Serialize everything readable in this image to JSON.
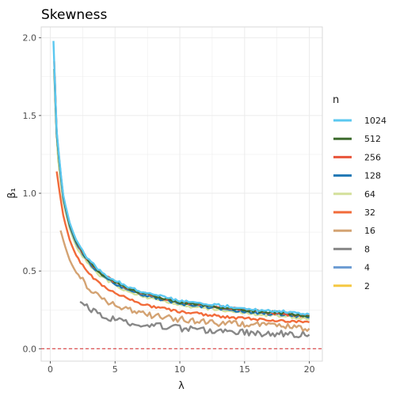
{
  "chart_data": {
    "type": "line",
    "title": "Skewness",
    "xlabel": "λ",
    "ylabel": "β₁",
    "xlim": [
      -0.7,
      21
    ],
    "ylim": [
      -0.08,
      2.07
    ],
    "x_ticks": [
      0,
      5,
      10,
      15,
      20
    ],
    "y_ticks": [
      0.0,
      0.5,
      1.0,
      1.5,
      2.0
    ],
    "y_tick_labels": [
      "0.0",
      "0.5",
      "1.0",
      "1.5",
      "2.0"
    ],
    "grid": true,
    "legend_position": "right",
    "legend_title": "n",
    "reference_line": {
      "y": 0,
      "color": "#d62728",
      "style": "dashed"
    },
    "series": [
      {
        "name": "1024",
        "color": "#5bc8f0",
        "lambda_min": 0.25,
        "points": [
          [
            0.25,
            1.98
          ],
          [
            0.5,
            1.4
          ],
          [
            1,
            0.99
          ],
          [
            1.5,
            0.81
          ],
          [
            2,
            0.7
          ],
          [
            3,
            0.57
          ],
          [
            4,
            0.49
          ],
          [
            5,
            0.44
          ],
          [
            6,
            0.4
          ],
          [
            7,
            0.37
          ],
          [
            8,
            0.35
          ],
          [
            10,
            0.31
          ],
          [
            12,
            0.29
          ],
          [
            14,
            0.27
          ],
          [
            16,
            0.25
          ],
          [
            18,
            0.24
          ],
          [
            20,
            0.22
          ]
        ]
      },
      {
        "name": "512",
        "color": "#3e6b2e",
        "lambda_min": 0.3,
        "points": [
          [
            0.3,
            1.8
          ],
          [
            0.5,
            1.38
          ],
          [
            1,
            0.98
          ],
          [
            1.5,
            0.8
          ],
          [
            2,
            0.69
          ],
          [
            3,
            0.56
          ],
          [
            4,
            0.48
          ],
          [
            5,
            0.43
          ],
          [
            6,
            0.39
          ],
          [
            7,
            0.36
          ],
          [
            8,
            0.34
          ],
          [
            10,
            0.3
          ],
          [
            12,
            0.28
          ],
          [
            14,
            0.26
          ],
          [
            16,
            0.24
          ],
          [
            18,
            0.23
          ],
          [
            20,
            0.21
          ]
        ]
      },
      {
        "name": "256",
        "color": "#e8543a",
        "lambda_min": 0.3,
        "points": [
          [
            0.3,
            1.85
          ],
          [
            0.5,
            1.39
          ],
          [
            1,
            0.98
          ],
          [
            1.5,
            0.8
          ],
          [
            2,
            0.69
          ],
          [
            3,
            0.56
          ],
          [
            4,
            0.48
          ],
          [
            5,
            0.43
          ],
          [
            6,
            0.39
          ],
          [
            7,
            0.36
          ],
          [
            8,
            0.34
          ],
          [
            10,
            0.3
          ],
          [
            12,
            0.28
          ],
          [
            14,
            0.26
          ],
          [
            16,
            0.24
          ],
          [
            18,
            0.22
          ],
          [
            20,
            0.21
          ]
        ]
      },
      {
        "name": "128",
        "color": "#1f77b4",
        "lambda_min": 0.35,
        "points": [
          [
            0.35,
            1.75
          ],
          [
            0.5,
            1.38
          ],
          [
            1,
            0.97
          ],
          [
            1.5,
            0.79
          ],
          [
            2,
            0.68
          ],
          [
            3,
            0.55
          ],
          [
            4,
            0.47
          ],
          [
            5,
            0.42
          ],
          [
            6,
            0.38
          ],
          [
            7,
            0.35
          ],
          [
            8,
            0.33
          ],
          [
            10,
            0.29
          ],
          [
            12,
            0.27
          ],
          [
            14,
            0.25
          ],
          [
            16,
            0.23
          ],
          [
            18,
            0.22
          ],
          [
            20,
            0.2
          ]
        ]
      },
      {
        "name": "64",
        "color": "#d4e09b",
        "lambda_min": 0.4,
        "points": [
          [
            0.4,
            1.55
          ],
          [
            0.6,
            1.22
          ],
          [
            1,
            0.95
          ],
          [
            1.5,
            0.77
          ],
          [
            2,
            0.66
          ],
          [
            3,
            0.54
          ],
          [
            4,
            0.46
          ],
          [
            5,
            0.41
          ],
          [
            6,
            0.37
          ],
          [
            7,
            0.34
          ],
          [
            8,
            0.32
          ],
          [
            10,
            0.28
          ],
          [
            12,
            0.26
          ],
          [
            14,
            0.24
          ],
          [
            16,
            0.22
          ],
          [
            18,
            0.21
          ],
          [
            20,
            0.19
          ]
        ]
      },
      {
        "name": "32",
        "color": "#f26b3a",
        "lambda_min": 0.5,
        "points": [
          [
            0.5,
            1.14
          ],
          [
            0.7,
            1.02
          ],
          [
            1,
            0.86
          ],
          [
            1.5,
            0.7
          ],
          [
            2,
            0.6
          ],
          [
            3,
            0.48
          ],
          [
            4,
            0.41
          ],
          [
            5,
            0.36
          ],
          [
            6,
            0.32
          ],
          [
            7,
            0.29
          ],
          [
            8,
            0.27
          ],
          [
            10,
            0.24
          ],
          [
            12,
            0.22
          ],
          [
            14,
            0.2
          ],
          [
            16,
            0.19
          ],
          [
            18,
            0.18
          ],
          [
            20,
            0.17
          ]
        ]
      },
      {
        "name": "16",
        "color": "#d4a373",
        "lambda_min": 0.8,
        "points": [
          [
            0.8,
            0.76
          ],
          [
            1,
            0.7
          ],
          [
            1.5,
            0.57
          ],
          [
            2,
            0.49
          ],
          [
            3,
            0.39
          ],
          [
            4,
            0.33
          ],
          [
            5,
            0.28
          ],
          [
            6,
            0.25
          ],
          [
            7,
            0.23
          ],
          [
            8,
            0.21
          ],
          [
            10,
            0.19
          ],
          [
            12,
            0.17
          ],
          [
            14,
            0.16
          ],
          [
            16,
            0.15
          ],
          [
            18,
            0.14
          ],
          [
            20,
            0.13
          ]
        ]
      },
      {
        "name": "8",
        "color": "#888888",
        "lambda_min": 2.3,
        "points": [
          [
            2.3,
            0.3
          ],
          [
            3,
            0.26
          ],
          [
            4,
            0.21
          ],
          [
            5,
            0.19
          ],
          [
            6,
            0.17
          ],
          [
            7,
            0.16
          ],
          [
            8,
            0.15
          ],
          [
            10,
            0.13
          ],
          [
            12,
            0.12
          ],
          [
            14,
            0.11
          ],
          [
            16,
            0.1
          ],
          [
            18,
            0.095
          ],
          [
            20,
            0.09
          ]
        ]
      },
      {
        "name": "4",
        "color": "#6b9bd2",
        "points": []
      },
      {
        "name": "2",
        "color": "#f5c842",
        "points": []
      }
    ]
  }
}
